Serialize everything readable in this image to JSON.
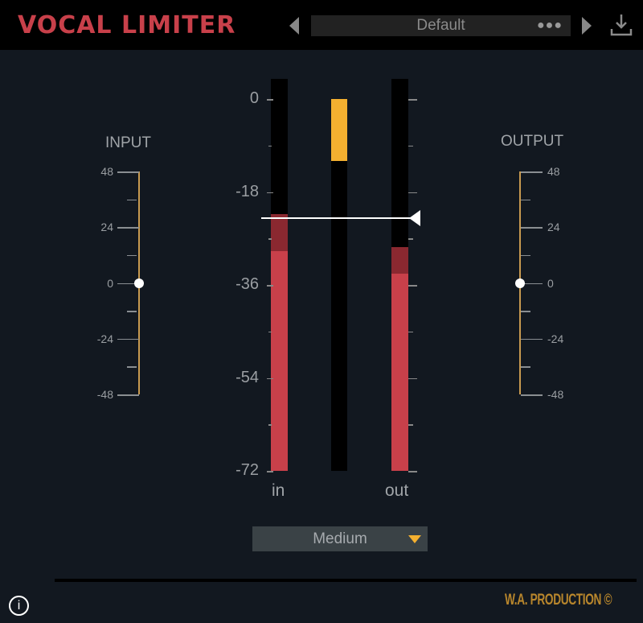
{
  "header": {
    "title": "VOCAL LIMITER",
    "preset": "Default",
    "preset_menu": "●●●"
  },
  "input": {
    "label": "INPUT",
    "ticks": [
      "48",
      "24",
      "0",
      "-24",
      "-48"
    ],
    "value_db": 0
  },
  "output": {
    "label": "OUTPUT",
    "ticks": [
      "48",
      "24",
      "0",
      "-24",
      "-48"
    ],
    "value_db": 0
  },
  "meters": {
    "scale": [
      "0",
      "-18",
      "-36",
      "-54",
      "-72"
    ],
    "in_label": "in",
    "out_label": "out",
    "in_peak_db": -22.3,
    "in_rms_db": -29.4,
    "out_peak_db": -28.7,
    "out_rms_db": -33.8,
    "gain_reduction_db": 12,
    "threshold_db": -23
  },
  "mode": {
    "selected": "Medium"
  },
  "footer": {
    "brand": "W.A. PRODUCTION ©",
    "info": "i"
  },
  "colors": {
    "accent": "#f4b030",
    "meter_red": "#c8404a",
    "meter_dark_red": "#8a2830",
    "title": "#c8404a",
    "brand": "#b8862c"
  }
}
